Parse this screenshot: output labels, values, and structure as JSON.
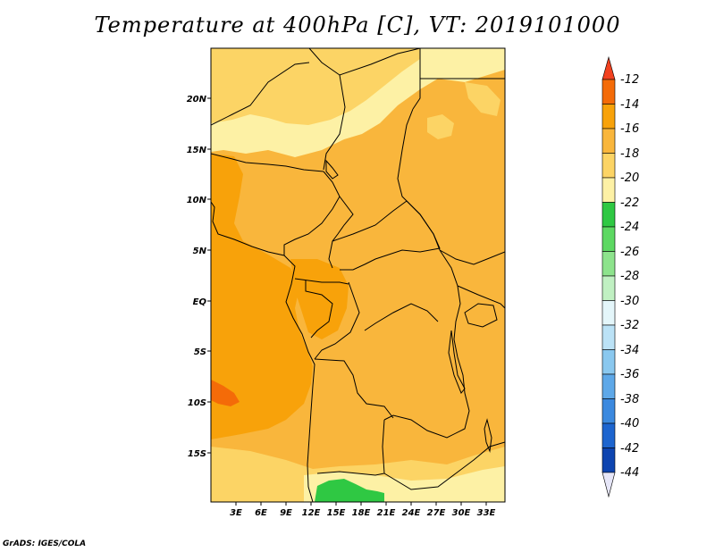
{
  "title": "Temperature at 400hPa [C], VT: 2019101000",
  "credit": "GrADS: IGES/COLA",
  "map": {
    "lat_labels": [
      "20N",
      "15N",
      "10N",
      "5N",
      "EQ",
      "5S",
      "10S",
      "15S"
    ],
    "lon_labels": [
      "3E",
      "6E",
      "9E",
      "12E",
      "15E",
      "18E",
      "21E",
      "24E",
      "27E",
      "30E",
      "33E"
    ]
  },
  "colorbar": {
    "labels": [
      "-12",
      "-14",
      "-16",
      "-18",
      "-20",
      "-22",
      "-24",
      "-26",
      "-28",
      "-30",
      "-32",
      "-34",
      "-36",
      "-38",
      "-40",
      "-42",
      "-44"
    ],
    "colors": {
      "lt_-12": "#f2411f",
      "-12_-14": "#f46b08",
      "-14_-16": "#f8a20a",
      "-16_-18": "#f9b63c",
      "-18_-20": "#fcd465",
      "-20_-22": "#fdf1a5",
      "-22_-24": "#2fc843",
      "-24_-26": "#5dd862",
      "-26_-28": "#8de38c",
      "-28_-30": "#c0f0c2",
      "-30_-32": "#e4f6fa",
      "-32_-34": "#bbe2f6",
      "-34_-36": "#8ac8ef",
      "-36_-38": "#5ea8e8",
      "-38_-40": "#3b89df",
      "-40_-42": "#1d65cf",
      "-42_-44": "#0d44b0",
      "gt_-44": "#0a1b72",
      "below": "#e6e6f8"
    }
  }
}
